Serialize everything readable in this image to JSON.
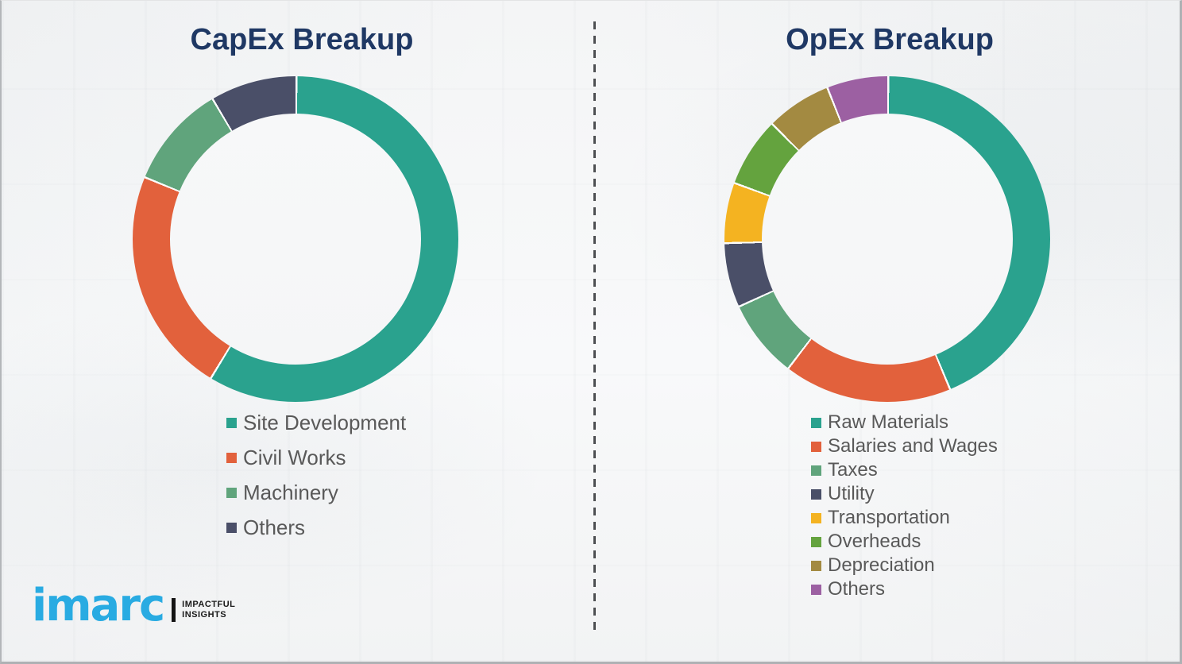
{
  "chart_data": [
    {
      "type": "pie",
      "subtype": "donut",
      "title": "CapEx Breakup",
      "categories": [
        "Site Development",
        "Civil Works",
        "Machinery",
        "Others"
      ],
      "values": [
        58.6,
        22.5,
        10.3,
        8.6
      ],
      "unit": "percent",
      "colors": [
        "#2aa28e",
        "#e2613c",
        "#60a47c",
        "#4a4f68"
      ],
      "start_angle_deg": 0,
      "direction": "clockwise",
      "legend_position": "below-left"
    },
    {
      "type": "pie",
      "subtype": "donut",
      "title": "OpEx Breakup",
      "categories": [
        "Raw Materials",
        "Salaries and Wages",
        "Taxes",
        "Utility",
        "Transportation",
        "Overheads",
        "Depreciation",
        "Others"
      ],
      "values": [
        43.6,
        16.7,
        7.8,
        6.4,
        6.0,
        6.9,
        6.5,
        6.1
      ],
      "unit": "percent",
      "colors": [
        "#2aa28e",
        "#e2613c",
        "#60a47c",
        "#4a4f68",
        "#f4b321",
        "#64a33e",
        "#a38a41",
        "#9c60a2"
      ],
      "start_angle_deg": 0,
      "direction": "clockwise",
      "legend_position": "below-left"
    }
  ],
  "logo": {
    "brand": "imarc",
    "tagline_line1": "IMPACTFUL",
    "tagline_line2": "INSIGHTS",
    "brand_color": "#29abe2"
  },
  "style": {
    "title_color": "#1f3864",
    "legend_text_color": "#595959",
    "divider_color": "#4d4f52",
    "background_color": "#f6f7f8"
  }
}
